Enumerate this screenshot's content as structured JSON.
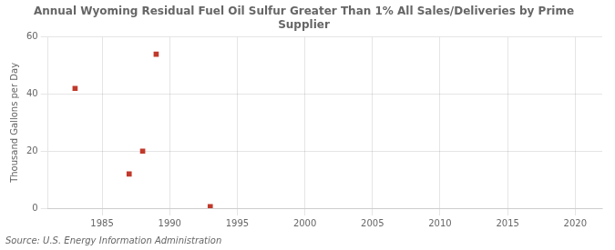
{
  "chart_data": {
    "type": "scatter",
    "title": "Annual Wyoming Residual Fuel Oil Sulfur Greater Than 1% All Sales/Deliveries by Prime\nSupplier",
    "ylabel": "Thousand Gallons per Day",
    "source": "Source: U.S. Energy Information Administration",
    "x": [
      1983,
      1987,
      1988,
      1989,
      1993
    ],
    "values": [
      42,
      12,
      20,
      54,
      0.5
    ],
    "color": "#c0392b",
    "marker": "square",
    "xlim": [
      1981,
      2022
    ],
    "ylim": [
      0,
      60
    ],
    "xticks": [
      1985,
      1990,
      1995,
      2000,
      2005,
      2010,
      2015,
      2020
    ],
    "yticks": [
      0,
      20,
      40,
      60
    ],
    "grid": true
  }
}
